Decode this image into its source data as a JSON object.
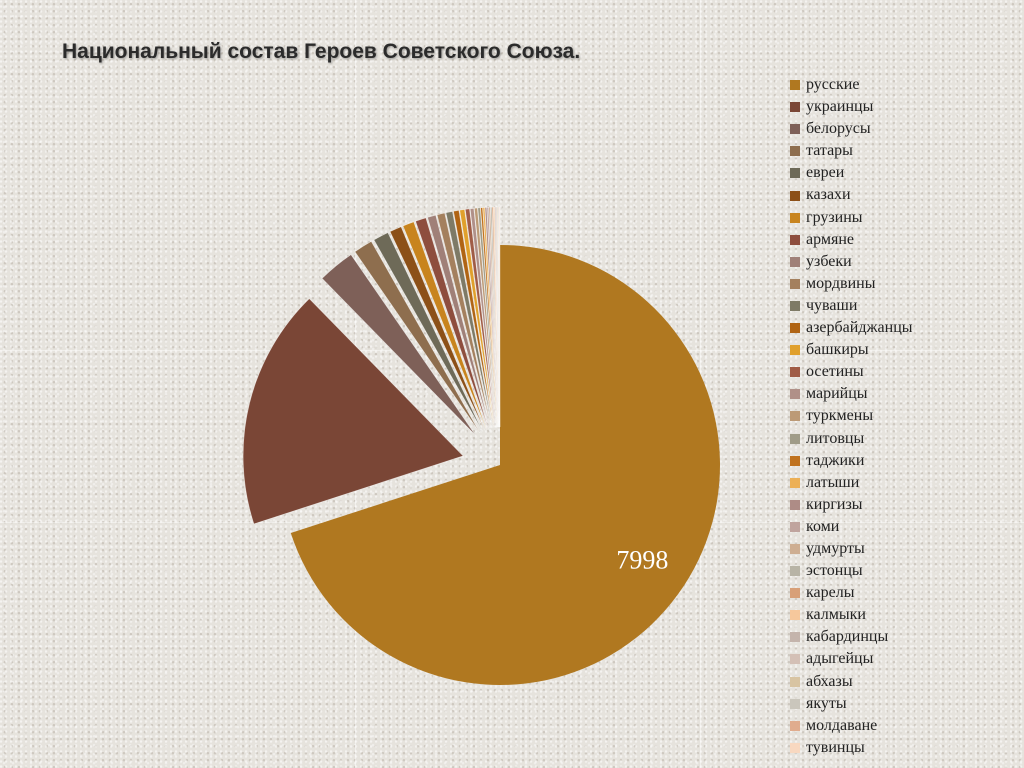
{
  "title": "Национальный состав Героев Советского Союза.",
  "chart_data": {
    "type": "pie",
    "title": "Национальный состав Героев Советского Союза.",
    "values_note": "Only the русские value (7998) is printed in the image; every other slice size is an approximate visual proportion estimated from the picture, not a read value.",
    "series": [
      {
        "values": [
          7998,
          2020,
          310,
          160,
          130,
          100,
          95,
          90,
          70,
          65,
          55,
          45,
          40,
          35,
          30,
          25,
          20,
          16,
          15,
          14,
          13,
          12,
          11,
          10,
          9,
          8,
          8,
          7,
          6,
          5,
          4
        ],
        "data_labels": [
          "7998",
          "",
          "",
          "",
          "",
          "",
          "",
          "",
          "",
          "",
          "",
          "",
          "",
          "",
          "",
          "",
          "",
          "",
          "",
          "",
          "",
          "",
          "",
          "",
          "",
          "",
          "",
          "",
          "",
          "",
          ""
        ]
      }
    ],
    "categories": [
      "русские",
      "украинцы",
      "белорусы",
      "татары",
      "евреи",
      "казахи",
      "грузины",
      "армяне",
      "узбеки",
      "мордвины",
      "чуваши",
      "азербайджанцы",
      "башкиры",
      "осетины",
      "марийцы",
      "туркмены",
      "литовцы",
      "таджики",
      "латыши",
      "киргизы",
      "коми",
      "удмурты",
      "эстонцы",
      "карелы",
      "калмыки",
      "кабардинцы",
      "адыгейцы",
      "абхазы",
      "якуты",
      "молдаване",
      "тувинцы"
    ],
    "colors": [
      "#b07820",
      "#7a4636",
      "#7e6058",
      "#8e6e4e",
      "#6e6a58",
      "#8c5018",
      "#c8841e",
      "#8e4e3e",
      "#a08078",
      "#a4805e",
      "#7e7a66",
      "#b06414",
      "#e0a02c",
      "#a05c46",
      "#b09088",
      "#bc9a76",
      "#a09c88",
      "#c0721e",
      "#ecb056",
      "#ae8c86",
      "#c0a49e",
      "#ceae92",
      "#b8b4a6",
      "#d8a078",
      "#f6c89c",
      "#c4b4ac",
      "#d4c0b6",
      "#d8c4a2",
      "#cac6bc",
      "#e0ac8e",
      "#f8d8c0"
    ],
    "legend_position": "right"
  },
  "legend": {
    "items": [
      {
        "label": "русские"
      },
      {
        "label": "украинцы"
      },
      {
        "label": "белорусы"
      },
      {
        "label": "татары"
      },
      {
        "label": "евреи"
      },
      {
        "label": "казахи"
      },
      {
        "label": "грузины"
      },
      {
        "label": "армяне"
      },
      {
        "label": "узбеки"
      },
      {
        "label": "мордвины"
      },
      {
        "label": "чуваши"
      },
      {
        "label": "азербайджанцы"
      },
      {
        "label": "башкиры"
      },
      {
        "label": "осетины"
      },
      {
        "label": "марийцы"
      },
      {
        "label": "туркмены"
      },
      {
        "label": "литовцы"
      },
      {
        "label": "таджики"
      },
      {
        "label": "латыши"
      },
      {
        "label": "киргизы"
      },
      {
        "label": "коми"
      },
      {
        "label": "удмурты"
      },
      {
        "label": "эстонцы"
      },
      {
        "label": "карелы"
      },
      {
        "label": "калмыки"
      },
      {
        "label": "кабардинцы"
      },
      {
        "label": "адыгейцы"
      },
      {
        "label": "абхазы"
      },
      {
        "label": "якуты"
      },
      {
        "label": "молдаване"
      },
      {
        "label": "тувинцы"
      }
    ]
  }
}
